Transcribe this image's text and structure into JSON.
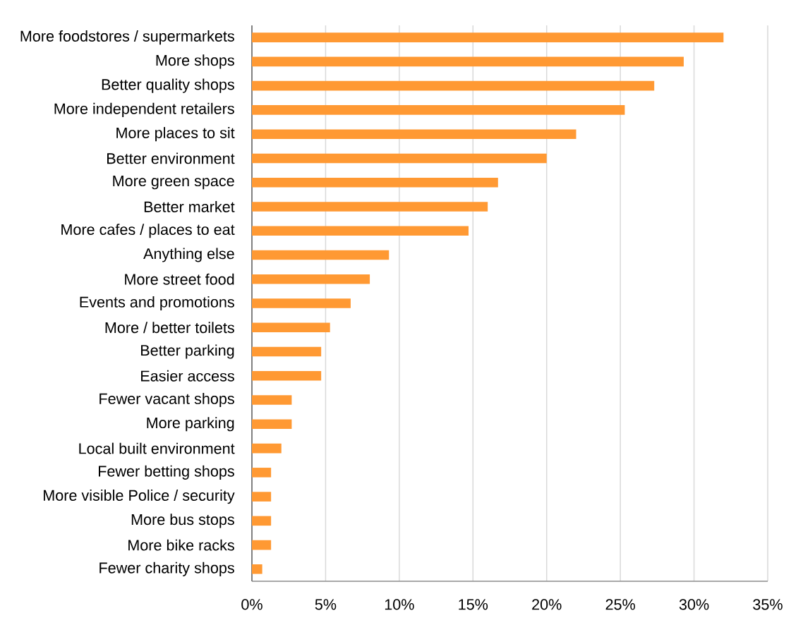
{
  "chart_data": {
    "type": "bar",
    "orientation": "horizontal",
    "categories": [
      "More foodstores / supermarkets",
      "More shops",
      "Better quality shops",
      "More independent retailers",
      "More places to sit",
      "Better environment",
      "More green space",
      "Better market",
      "More cafes / places to eat",
      "Anything else",
      "More street food",
      "Events and promotions",
      "More / better toilets",
      "Better parking",
      "Easier access",
      "Fewer vacant shops",
      "More parking",
      "Local built environment",
      "Fewer betting shops",
      "More visible Police / security",
      "More bus stops",
      "More bike racks",
      "Fewer charity shops"
    ],
    "values": [
      32.0,
      29.3,
      27.3,
      25.3,
      22.0,
      20.0,
      16.7,
      16.0,
      14.7,
      9.3,
      8.0,
      6.7,
      5.3,
      4.7,
      4.7,
      2.7,
      2.7,
      2.0,
      1.3,
      1.3,
      1.3,
      1.3,
      0.7
    ],
    "color": "#ff9933",
    "xlim": [
      0,
      35
    ],
    "xticks": [
      {
        "value": 0,
        "label": "0%"
      },
      {
        "value": 5,
        "label": "5%"
      },
      {
        "value": 10,
        "label": "10%"
      },
      {
        "value": 15,
        "label": "15%"
      },
      {
        "value": 20,
        "label": "20%"
      },
      {
        "value": 25,
        "label": "25%"
      },
      {
        "value": 30,
        "label": "30%"
      },
      {
        "value": 35,
        "label": "35%"
      }
    ],
    "grid": "x"
  }
}
